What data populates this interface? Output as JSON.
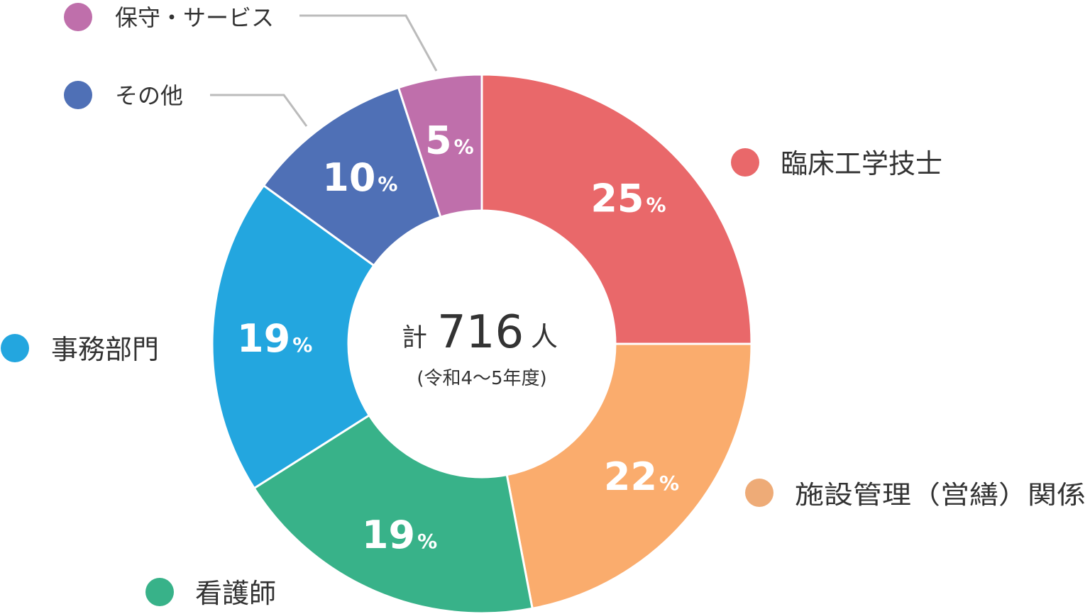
{
  "chart_data": {
    "type": "pie",
    "variant": "donut",
    "center": {
      "prefix": "計",
      "value": "716",
      "unit": "人",
      "note": "(令和4〜5年度)"
    },
    "slices": [
      {
        "label": "臨床工学技士",
        "value": 25,
        "color": "#e9686a"
      },
      {
        "label": "施設管理（営繕）関係",
        "value": 22,
        "color": "#faac6d"
      },
      {
        "label": "看護師",
        "value": 19,
        "color": "#38b289"
      },
      {
        "label": "事務部門",
        "value": 19,
        "color": "#23a6df"
      },
      {
        "label": "その他",
        "value": 10,
        "color": "#4f70b6"
      },
      {
        "label": "保守・サービス",
        "value": 5,
        "color": "#bf6fab"
      }
    ],
    "percent_sign": "%",
    "legend_dot_colors": [
      "#e9686a",
      "#eeab77",
      "#38b289",
      "#23a6df",
      "#4f70b6",
      "#bf6fab"
    ]
  }
}
